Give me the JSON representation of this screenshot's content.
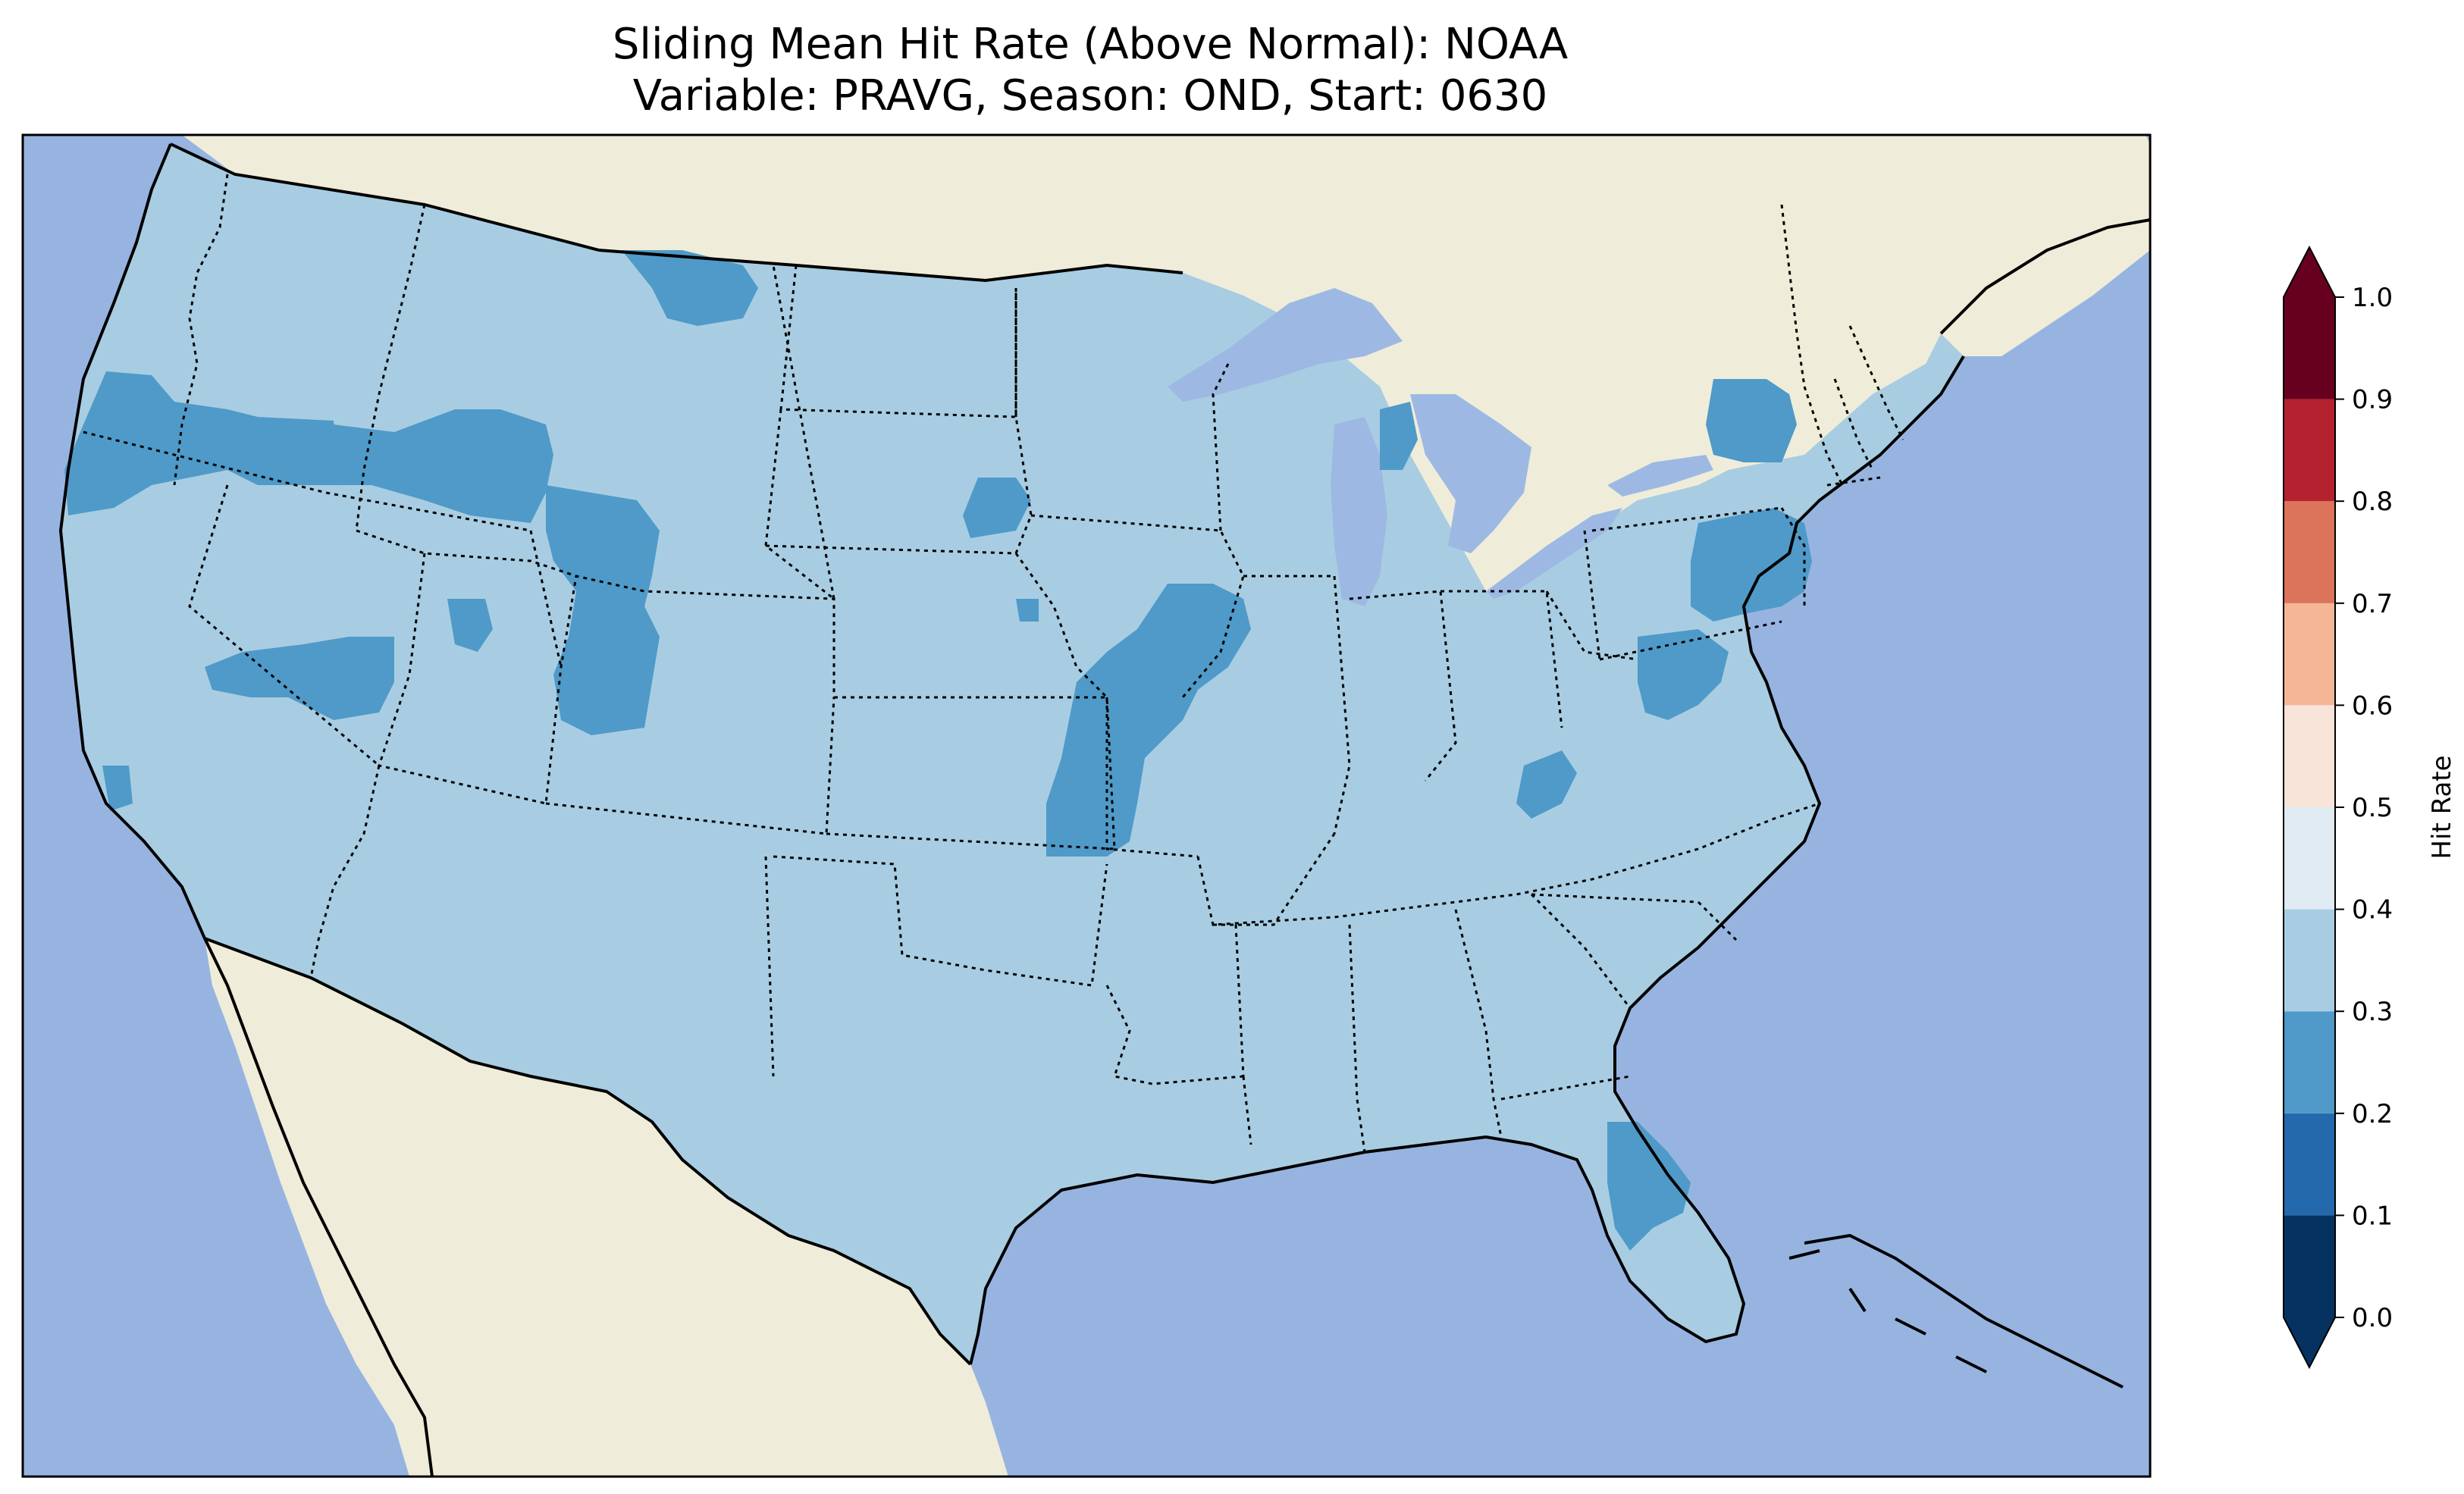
{
  "title": {
    "line1": "Sliding Mean Hit Rate (Above Normal): NOAA",
    "line2": "Variable: PRAVG, Season: OND, Start: 0630"
  },
  "colors": {
    "ocean": "#97b4e1",
    "land": "#efedd9",
    "hit_0_3_0_4": "#a8cde2",
    "hit_0_2_0_3": "#4f9ac8",
    "lakes": "#9db9e3"
  },
  "colorbar": {
    "label": "Hit Rate",
    "ticks": [
      "0.0",
      "0.1",
      "0.2",
      "0.3",
      "0.4",
      "0.5",
      "0.6",
      "0.7",
      "0.8",
      "0.9",
      "1.0"
    ],
    "bins": [
      {
        "range": [
          0.0,
          0.1
        ],
        "color": "#063262"
      },
      {
        "range": [
          0.1,
          0.2
        ],
        "color": "#2569ad"
      },
      {
        "range": [
          0.2,
          0.3
        ],
        "color": "#4f9ac8"
      },
      {
        "range": [
          0.3,
          0.4
        ],
        "color": "#a8cde2"
      },
      {
        "range": [
          0.4,
          0.5
        ],
        "color": "#e0ebf3"
      },
      {
        "range": [
          0.5,
          0.6
        ],
        "color": "#f8e4d8"
      },
      {
        "range": [
          0.6,
          0.7
        ],
        "color": "#f5b697"
      },
      {
        "range": [
          0.7,
          0.8
        ],
        "color": "#dc735b"
      },
      {
        "range": [
          0.8,
          0.9
        ],
        "color": "#b4212f"
      },
      {
        "range": [
          0.9,
          1.0
        ],
        "color": "#67001f"
      }
    ],
    "extend": "both"
  }
}
